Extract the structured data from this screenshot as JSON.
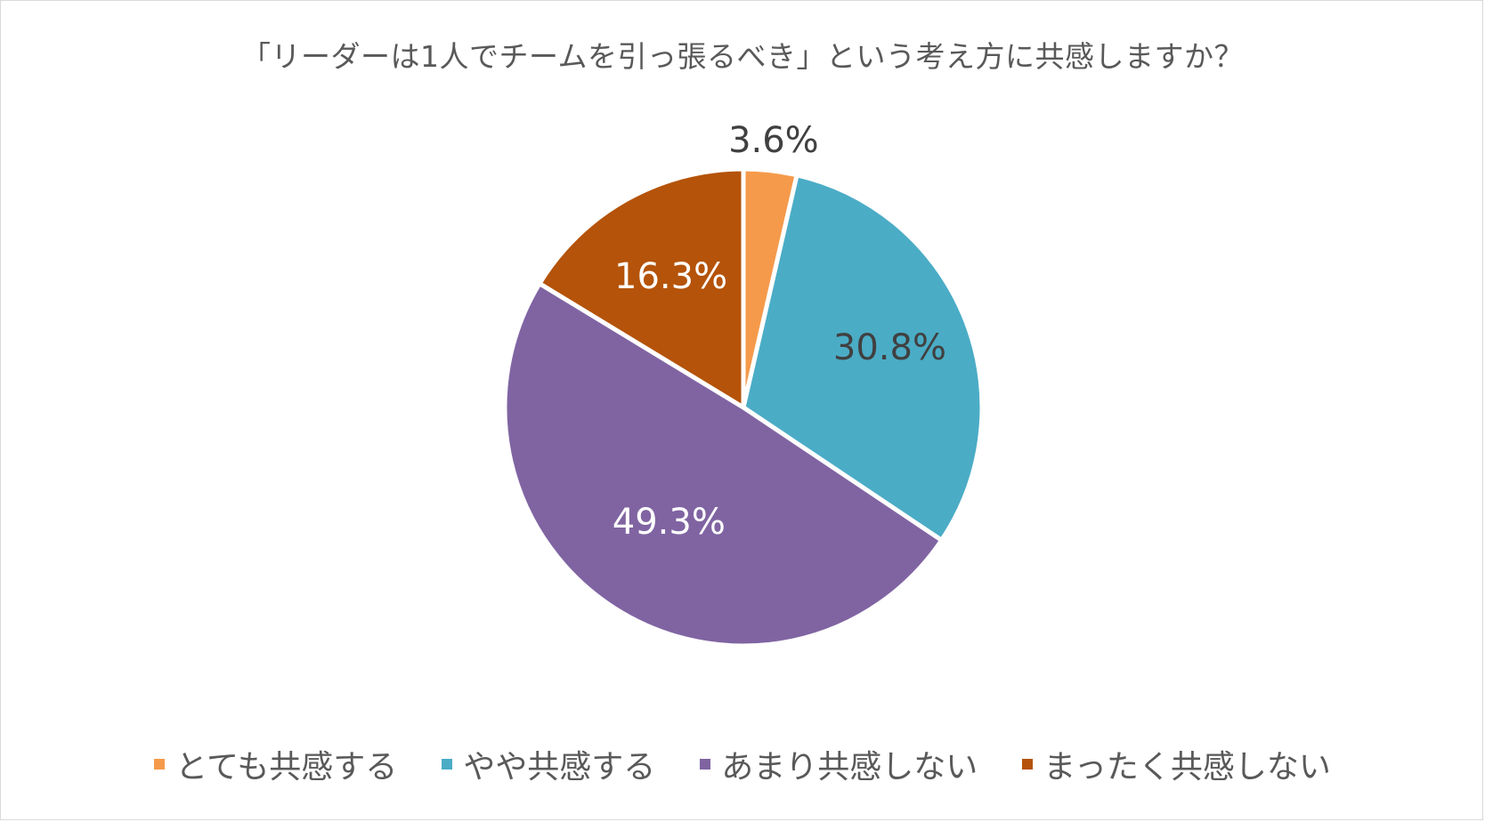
{
  "chart_data": {
    "type": "pie",
    "title": "「リーダーは1人でチームを引っ張るべき」という考え方に共感しますか？",
    "categories": [
      "とても共感する",
      "やや共感する",
      "あまり共感しない",
      "まったく共感しない"
    ],
    "values": [
      3.6,
      30.8,
      49.3,
      16.3
    ],
    "labels": [
      "3.6%",
      "30.8%",
      "49.3%",
      "16.3%"
    ],
    "colors": [
      "#F59A4B",
      "#4BACC6",
      "#8064A2",
      "#B45309"
    ],
    "label_colors": [
      "#404040",
      "#404040",
      "#ffffff",
      "#ffffff"
    ],
    "start_angle": "12 o'clock",
    "direction": "clockwise",
    "legend_position": "bottom"
  }
}
